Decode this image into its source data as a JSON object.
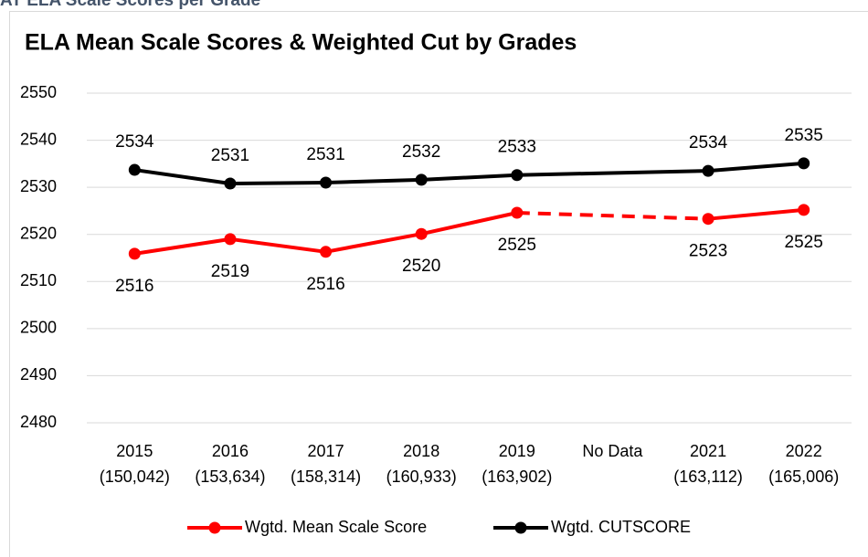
{
  "header": {
    "title": "AT ELA Scale Scores per Grade"
  },
  "chart_data": {
    "type": "line",
    "title": "ELA Mean Scale Scores & Weighted Cut by Grades",
    "categories": [
      "2015",
      "2016",
      "2017",
      "2018",
      "2019",
      "No Data",
      "2021",
      "2022"
    ],
    "category_counts": [
      "(150,042)",
      "(153,634)",
      "(158,314)",
      "(160,933)",
      "(163,902)",
      null,
      "(163,112)",
      "(165,006)"
    ],
    "series": [
      {
        "name": "Wgtd. Mean Scale Score",
        "color": "#ff0000",
        "gap_style": "dashed",
        "label_position": "below",
        "values": [
          2515.9,
          2519.0,
          2516.3,
          2520.1,
          2524.6,
          null,
          2523.3,
          2525.2
        ],
        "value_labels": [
          "2516",
          "2519",
          "2516",
          "2520",
          "2525",
          null,
          "2523",
          "2525"
        ]
      },
      {
        "name": "Wgtd. CUTSCORE",
        "color": "#000000",
        "gap_style": "solid",
        "label_position": "above",
        "values": [
          2533.7,
          2530.8,
          2531.0,
          2531.6,
          2532.6,
          null,
          2533.5,
          2535.1
        ],
        "value_labels": [
          "2534",
          "2531",
          "2531",
          "2532",
          "2533",
          null,
          "2534",
          "2535"
        ]
      }
    ],
    "ylim": [
      2480,
      2550
    ],
    "yticks": [
      2480,
      2490,
      2500,
      2510,
      2520,
      2530,
      2540,
      2550
    ],
    "grid": true,
    "legend": "bottom"
  }
}
